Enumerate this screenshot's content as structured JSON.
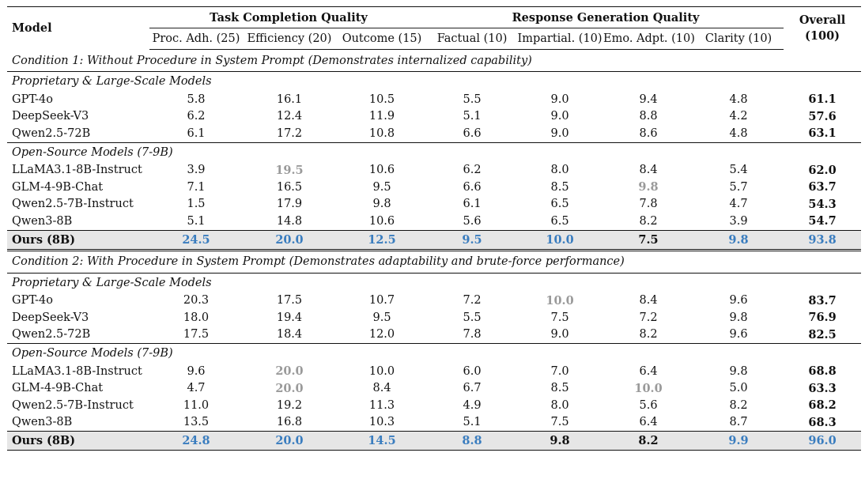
{
  "header": {
    "model": "Model",
    "group_task": "Task Completion Quality",
    "group_response": "Response Generation Quality",
    "overall": "Overall",
    "overall_sub": "(100)",
    "columns": [
      "Proc. Adh. (25)",
      "Efficiency (20)",
      "Outcome (15)",
      "Factual (10)",
      "Impartial. (10)",
      "Emo. Adpt. (10)",
      "Clarity (10)"
    ]
  },
  "c1": {
    "title": "Condition 1: Without Procedure in System Prompt (Demonstrates internalized capability)",
    "prop_title": "Proprietary & Large-Scale Models",
    "open_title": "Open-Source Models (7-9B)",
    "prop": [
      {
        "m": "GPT-4o",
        "v": [
          "5.8",
          "16.1",
          "10.5",
          "5.5",
          "9.0",
          "9.4",
          "4.8",
          "61.1"
        ]
      },
      {
        "m": "DeepSeek-V3",
        "v": [
          "6.2",
          "12.4",
          "11.9",
          "5.1",
          "9.0",
          "8.8",
          "4.2",
          "57.6"
        ]
      },
      {
        "m": "Qwen2.5-72B",
        "v": [
          "6.1",
          "17.2",
          "10.8",
          "6.6",
          "9.0",
          "8.6",
          "4.8",
          "63.1"
        ]
      }
    ],
    "open": [
      {
        "m": "LLaMA3.1-8B-Instruct",
        "v": [
          "3.9",
          "19.5",
          "10.6",
          "6.2",
          "8.0",
          "8.4",
          "5.4",
          "62.0"
        ]
      },
      {
        "m": "GLM-4-9B-Chat",
        "v": [
          "7.1",
          "16.5",
          "9.5",
          "6.6",
          "8.5",
          "9.8",
          "5.7",
          "63.7"
        ]
      },
      {
        "m": "Qwen2.5-7B-Instruct",
        "v": [
          "1.5",
          "17.9",
          "9.8",
          "6.1",
          "6.5",
          "7.8",
          "4.7",
          "54.3"
        ]
      },
      {
        "m": "Qwen3-8B",
        "v": [
          "5.1",
          "14.8",
          "10.6",
          "5.6",
          "6.5",
          "8.2",
          "3.9",
          "54.7"
        ]
      }
    ],
    "ours": {
      "m": "Ours (8B)",
      "v": [
        "24.5",
        "20.0",
        "12.5",
        "9.5",
        "10.0",
        "7.5",
        "9.8",
        "93.8"
      ]
    }
  },
  "c2": {
    "title": "Condition 2: With Procedure in System Prompt (Demonstrates adaptability and brute-force performance)",
    "prop_title": "Proprietary & Large-Scale Models",
    "open_title": "Open-Source Models (7-9B)",
    "prop": [
      {
        "m": "GPT-4o",
        "v": [
          "20.3",
          "17.5",
          "10.7",
          "7.2",
          "10.0",
          "8.4",
          "9.6",
          "83.7"
        ]
      },
      {
        "m": "DeepSeek-V3",
        "v": [
          "18.0",
          "19.4",
          "9.5",
          "5.5",
          "7.5",
          "7.2",
          "9.8",
          "76.9"
        ]
      },
      {
        "m": "Qwen2.5-72B",
        "v": [
          "17.5",
          "18.4",
          "12.0",
          "7.8",
          "9.0",
          "8.2",
          "9.6",
          "82.5"
        ]
      }
    ],
    "open": [
      {
        "m": "LLaMA3.1-8B-Instruct",
        "v": [
          "9.6",
          "20.0",
          "10.0",
          "6.0",
          "7.0",
          "6.4",
          "9.8",
          "68.8"
        ]
      },
      {
        "m": "GLM-4-9B-Chat",
        "v": [
          "4.7",
          "20.0",
          "8.4",
          "6.7",
          "8.5",
          "10.0",
          "5.0",
          "63.3"
        ]
      },
      {
        "m": "Qwen2.5-7B-Instruct",
        "v": [
          "11.0",
          "19.2",
          "11.3",
          "4.9",
          "8.0",
          "5.6",
          "8.2",
          "68.2"
        ]
      },
      {
        "m": "Qwen3-8B",
        "v": [
          "13.5",
          "16.8",
          "10.3",
          "5.1",
          "7.5",
          "6.4",
          "8.7",
          "68.3"
        ]
      }
    ],
    "ours": {
      "m": "Ours (8B)",
      "v": [
        "24.8",
        "20.0",
        "14.5",
        "8.8",
        "9.8",
        "8.2",
        "9.9",
        "96.0"
      ]
    }
  }
}
